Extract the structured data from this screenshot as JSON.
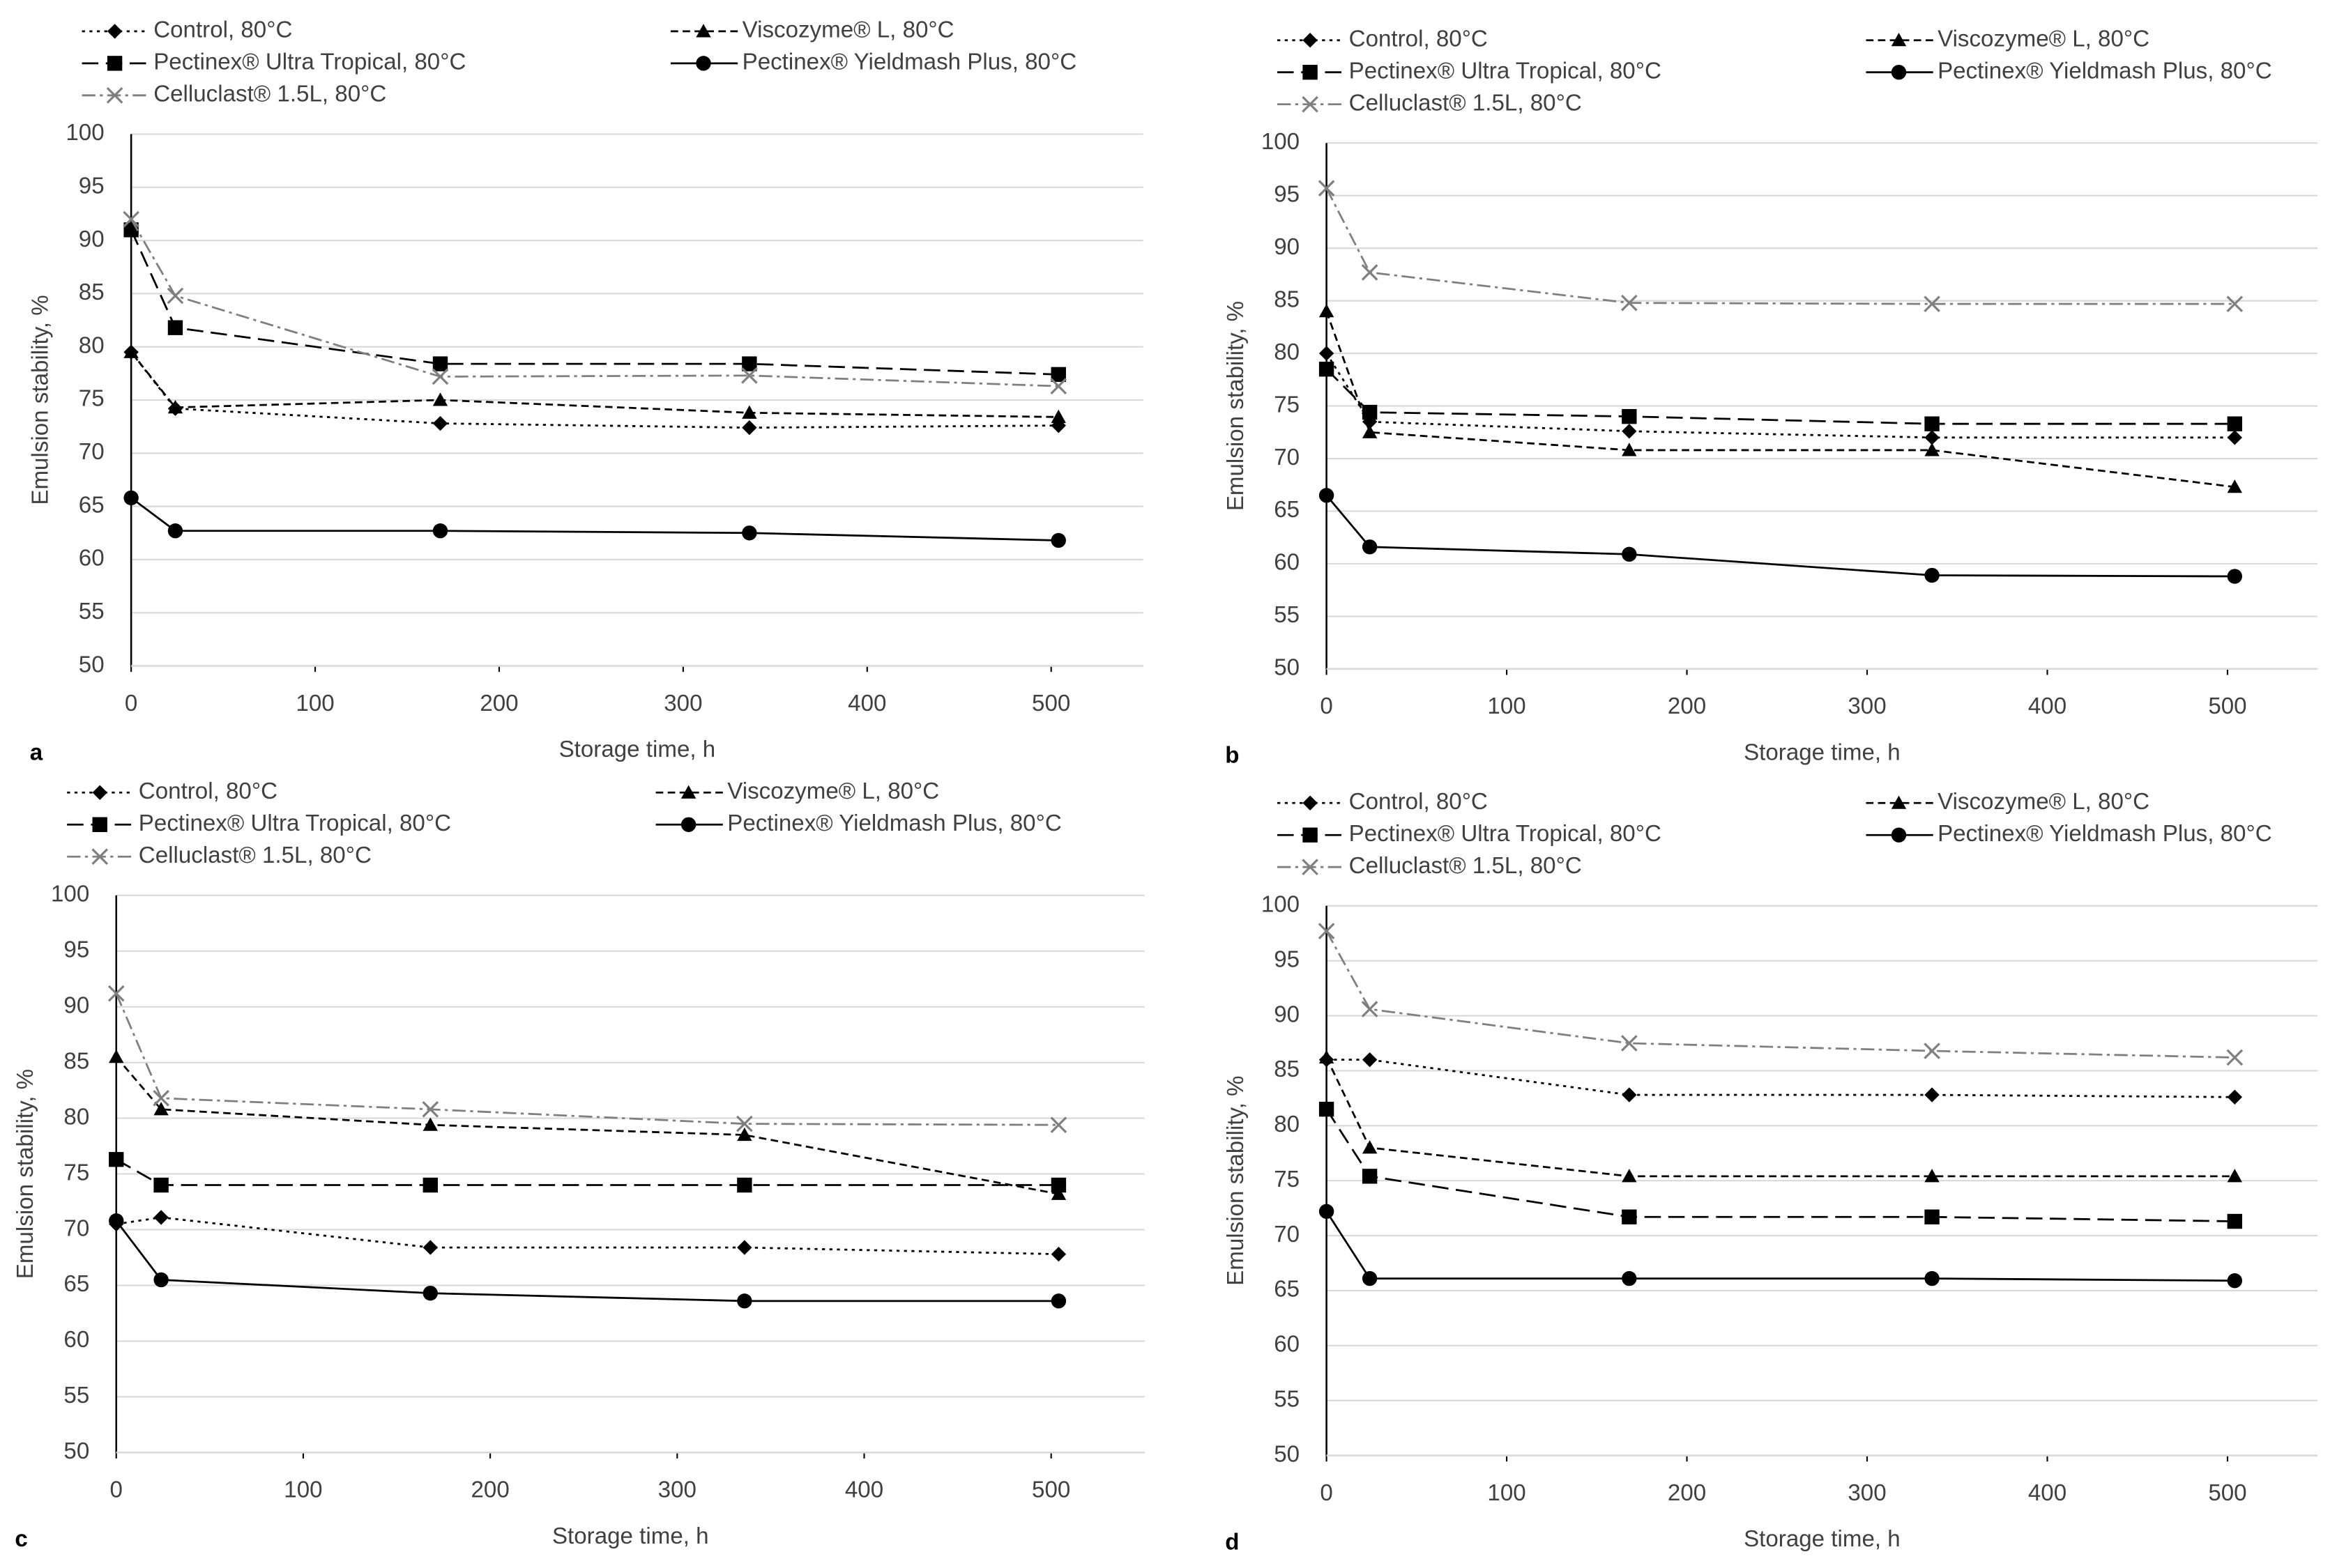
{
  "chart_data": [
    {
      "type": "line",
      "panel_label": "a",
      "x_label": "Storage time, h",
      "y_label": "Emulsion stability, %",
      "x": [
        0,
        24,
        168,
        336,
        504
      ],
      "xlim": [
        0,
        550
      ],
      "xticks": [
        0,
        100,
        200,
        300,
        400,
        500
      ],
      "ylim": [
        50,
        100
      ],
      "yticks": [
        50,
        55,
        60,
        65,
        70,
        75,
        80,
        85,
        90,
        95,
        100
      ],
      "grid": true,
      "series": [
        {
          "name": "Control, 80°C",
          "color": "#000000",
          "line_style": "dotted",
          "marker": "diamond",
          "values": [
            79.5,
            74.2,
            72.8,
            72.4,
            72.6
          ]
        },
        {
          "name": "Viscozyme® L, 80°C",
          "color": "#000000",
          "line_style": "dashed",
          "marker": "triangle",
          "values": [
            79.5,
            74.3,
            75.0,
            73.8,
            73.4
          ]
        },
        {
          "name": "Pectinex® Ultra Tropical, 80°C",
          "color": "#000000",
          "line_style": "long-dash",
          "marker": "square",
          "values": [
            91.0,
            81.8,
            78.4,
            78.4,
            77.4
          ]
        },
        {
          "name": "Pectinex® Yieldmash Plus, 80°C",
          "color": "#000000",
          "line_style": "solid",
          "marker": "circle",
          "values": [
            65.8,
            62.7,
            62.7,
            62.5,
            61.8
          ]
        },
        {
          "name": "Celluclast® 1.5L, 80°C",
          "color": "#7f7f7f",
          "line_style": "dash-dot",
          "marker": "x",
          "values": [
            92.0,
            84.8,
            77.2,
            77.3,
            76.3
          ]
        }
      ]
    },
    {
      "type": "line",
      "panel_label": "b",
      "x_label": "Storage time, h",
      "y_label": "Emulsion stability, %",
      "x": [
        0,
        24,
        168,
        336,
        504
      ],
      "xlim": [
        0,
        550
      ],
      "xticks": [
        0,
        100,
        200,
        300,
        400,
        500
      ],
      "ylim": [
        50,
        100
      ],
      "yticks": [
        50,
        55,
        60,
        65,
        70,
        75,
        80,
        85,
        90,
        95,
        100
      ],
      "grid": true,
      "series": [
        {
          "name": "Control, 80°C",
          "color": "#000000",
          "line_style": "dotted",
          "marker": "diamond",
          "values": [
            80.0,
            73.5,
            72.6,
            72.0,
            72.0
          ]
        },
        {
          "name": "Viscozyme® L, 80°C",
          "color": "#000000",
          "line_style": "dashed",
          "marker": "triangle",
          "values": [
            84.0,
            72.5,
            70.8,
            70.8,
            67.3
          ]
        },
        {
          "name": "Pectinex® Ultra Tropical, 80°C",
          "color": "#000000",
          "line_style": "long-dash",
          "marker": "square",
          "values": [
            78.5,
            74.4,
            74.0,
            73.3,
            73.3
          ]
        },
        {
          "name": "Pectinex® Yieldmash Plus, 80°C",
          "color": "#000000",
          "line_style": "solid",
          "marker": "circle",
          "values": [
            66.5,
            61.6,
            60.9,
            58.9,
            58.8
          ]
        },
        {
          "name": "Celluclast® 1.5L, 80°C",
          "color": "#7f7f7f",
          "line_style": "dash-dot",
          "marker": "x",
          "values": [
            95.7,
            87.7,
            84.8,
            84.7,
            84.7
          ]
        }
      ]
    },
    {
      "type": "line",
      "panel_label": "c",
      "x_label": "Storage time, h",
      "y_label": "Emulsion stability, %",
      "x": [
        0,
        24,
        168,
        336,
        504
      ],
      "xlim": [
        0,
        550
      ],
      "xticks": [
        0,
        100,
        200,
        300,
        400,
        500
      ],
      "ylim": [
        50,
        100
      ],
      "yticks": [
        50,
        55,
        60,
        65,
        70,
        75,
        80,
        85,
        90,
        95,
        100
      ],
      "grid": true,
      "series": [
        {
          "name": "Control, 80°C",
          "color": "#000000",
          "line_style": "dotted",
          "marker": "diamond",
          "values": [
            70.5,
            71.1,
            68.4,
            68.4,
            67.8
          ]
        },
        {
          "name": "Viscozyme® L, 80°C",
          "color": "#000000",
          "line_style": "dashed",
          "marker": "triangle",
          "values": [
            85.5,
            80.8,
            79.4,
            78.5,
            73.2
          ]
        },
        {
          "name": "Pectinex® Ultra Tropical, 80°C",
          "color": "#000000",
          "line_style": "long-dash",
          "marker": "square",
          "values": [
            76.3,
            74.0,
            74.0,
            74.0,
            74.0
          ]
        },
        {
          "name": "Pectinex® Yieldmash Plus, 80°C",
          "color": "#000000",
          "line_style": "solid",
          "marker": "circle",
          "values": [
            70.8,
            65.5,
            64.3,
            63.6,
            63.6
          ]
        },
        {
          "name": "Celluclast® 1.5L, 80°C",
          "color": "#7f7f7f",
          "line_style": "dash-dot",
          "marker": "x",
          "values": [
            91.2,
            81.8,
            80.8,
            79.5,
            79.4
          ]
        }
      ]
    },
    {
      "type": "line",
      "panel_label": "d",
      "x_label": "Storage time, h",
      "y_label": "Emulsion stability, %",
      "x": [
        0,
        24,
        168,
        336,
        504
      ],
      "xlim": [
        0,
        550
      ],
      "xticks": [
        0,
        100,
        200,
        300,
        400,
        500
      ],
      "ylim": [
        50,
        100
      ],
      "yticks": [
        50,
        55,
        60,
        65,
        70,
        75,
        80,
        85,
        90,
        95,
        100
      ],
      "grid": true,
      "series": [
        {
          "name": "Control, 80°C",
          "color": "#000000",
          "line_style": "dotted",
          "marker": "diamond",
          "values": [
            86.0,
            86.0,
            82.8,
            82.8,
            82.6
          ]
        },
        {
          "name": "Viscozyme® L, 80°C",
          "color": "#000000",
          "line_style": "dashed",
          "marker": "triangle",
          "values": [
            86.2,
            78.0,
            75.4,
            75.4,
            75.4
          ]
        },
        {
          "name": "Pectinex® Ultra Tropical, 80°C",
          "color": "#000000",
          "line_style": "long-dash",
          "marker": "square",
          "values": [
            81.5,
            75.4,
            71.7,
            71.7,
            71.3
          ]
        },
        {
          "name": "Pectinex® Yieldmash Plus, 80°C",
          "color": "#000000",
          "line_style": "solid",
          "marker": "circle",
          "values": [
            72.2,
            66.1,
            66.1,
            66.1,
            65.9
          ]
        },
        {
          "name": "Celluclast® 1.5L, 80°C",
          "color": "#7f7f7f",
          "line_style": "dash-dot",
          "marker": "x",
          "values": [
            97.7,
            90.6,
            87.5,
            86.8,
            86.2
          ]
        }
      ]
    }
  ]
}
